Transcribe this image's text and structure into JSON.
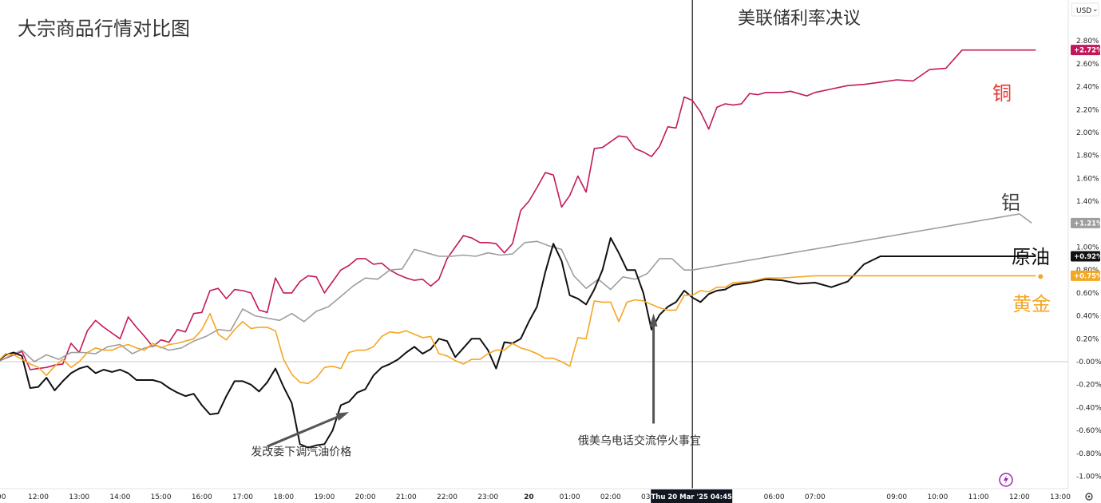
{
  "chart_data": {
    "type": "line",
    "title": "大宗商品行情对比图",
    "event_label": "美联储利率决议",
    "currency": "USD",
    "currency_caret": "⌄",
    "ylim": [
      -1.1,
      2.95
    ],
    "y_ticks": [
      "2.80%",
      "2.60%",
      "2.40%",
      "2.20%",
      "2.00%",
      "1.80%",
      "1.60%",
      "1.40%",
      "1.20%",
      "1.00%",
      "0.80%",
      "0.60%",
      "0.40%",
      "0.20%",
      "-0.00%",
      "-0.20%",
      "-0.40%",
      "-0.60%",
      "-0.80%",
      "-1.00%"
    ],
    "y_tick_values": [
      2.8,
      2.6,
      2.4,
      2.2,
      2.0,
      1.8,
      1.6,
      1.4,
      1.2,
      1.0,
      0.8,
      0.6,
      0.4,
      0.2,
      0,
      -0.2,
      -0.4,
      -0.6,
      -0.8,
      -1.0
    ],
    "x_ticks": [
      "00",
      "12:00",
      "13:00",
      "14:00",
      "15:00",
      "16:00",
      "17:00",
      "18:00",
      "19:00",
      "20:00",
      "21:00",
      "22:00",
      "23:00",
      "20",
      "01:00",
      "02:00",
      "03:00",
      "06:00",
      "07:00",
      "09:00",
      "10:00",
      "11:00",
      "12:00",
      "13:00"
    ],
    "x_tick_values": [
      11.0,
      12.0,
      13.0,
      14.0,
      15.0,
      16.0,
      17.0,
      18.0,
      19.0,
      20.0,
      21.0,
      22.0,
      23.0,
      24.0,
      25.0,
      26.0,
      27.0,
      30.0,
      31.0,
      33.0,
      34.0,
      35.0,
      36.0,
      37.0
    ],
    "xlim": [
      11.0,
      37.8
    ],
    "crosshair_x": 28.0,
    "crosshair_label": "Thu 20 Mar '25   04:45",
    "series": [
      {
        "name": "铜",
        "color": "#c2185b",
        "last_label": "+2.72%",
        "last_value": 2.72,
        "x": [
          11.0,
          11.2,
          11.4,
          11.6,
          11.8,
          12.0,
          12.2,
          12.4,
          12.6,
          12.8,
          13.0,
          13.2,
          13.4,
          13.6,
          13.8,
          14.0,
          14.2,
          14.4,
          14.6,
          14.8,
          15.0,
          15.2,
          15.4,
          15.6,
          15.8,
          16.0,
          16.2,
          16.4,
          16.6,
          16.8,
          17.0,
          17.2,
          17.4,
          17.6,
          17.8,
          18.0,
          18.2,
          18.4,
          18.6,
          18.8,
          19.0,
          19.2,
          19.4,
          19.6,
          19.8,
          20.0,
          20.2,
          20.4,
          20.6,
          20.8,
          21.0,
          21.2,
          21.4,
          21.6,
          21.8,
          22.0,
          22.2,
          22.4,
          22.6,
          22.8,
          23.0,
          23.2,
          23.4,
          23.6,
          23.8,
          24.0,
          24.2,
          24.4,
          24.6,
          24.8,
          25.0,
          25.2,
          25.4,
          25.6,
          25.8,
          26.0,
          26.2,
          26.4,
          26.6,
          26.8,
          27.0,
          27.2,
          27.4,
          27.6,
          27.8,
          28.0,
          28.2,
          28.4,
          28.6,
          28.8,
          29.0,
          29.2,
          29.4,
          29.6,
          29.8,
          30.0,
          30.2,
          30.4,
          30.6,
          30.8,
          31.0,
          31.4,
          31.8,
          32.2,
          32.6,
          33.0,
          33.4,
          33.8,
          34.2,
          34.6,
          35.0,
          35.4,
          35.8,
          36.0,
          36.2,
          36.4
        ],
        "y": [
          0.0,
          0.03,
          0.06,
          0.09,
          -0.07,
          -0.06,
          -0.05,
          -0.03,
          -0.02,
          0.16,
          0.08,
          0.27,
          0.36,
          0.3,
          0.25,
          0.2,
          0.39,
          0.3,
          0.22,
          0.13,
          0.19,
          0.17,
          0.28,
          0.26,
          0.42,
          0.43,
          0.62,
          0.64,
          0.55,
          0.63,
          0.62,
          0.6,
          0.45,
          0.43,
          0.73,
          0.6,
          0.6,
          0.7,
          0.75,
          0.74,
          0.6,
          0.7,
          0.8,
          0.84,
          0.9,
          0.9,
          0.85,
          0.86,
          0.8,
          0.76,
          0.73,
          0.71,
          0.72,
          0.66,
          0.72,
          0.9,
          1.0,
          1.1,
          1.08,
          1.04,
          1.04,
          1.03,
          0.95,
          1.03,
          1.32,
          1.4,
          1.52,
          1.65,
          1.63,
          1.35,
          1.45,
          1.62,
          1.48,
          1.86,
          1.87,
          1.92,
          1.97,
          1.96,
          1.86,
          1.83,
          1.79,
          1.88,
          2.05,
          2.04,
          2.31,
          2.28,
          2.18,
          2.03,
          2.22,
          2.25,
          2.24,
          2.25,
          2.34,
          2.33,
          2.35,
          2.35,
          2.35,
          2.36,
          2.34,
          2.32,
          2.35,
          2.38,
          2.41,
          2.42,
          2.44,
          2.46,
          2.45,
          2.55,
          2.56,
          2.72,
          2.72,
          2.72,
          2.72,
          2.72,
          2.72,
          2.72
        ]
      },
      {
        "name": "铝",
        "color": "#9e9e9e",
        "last_label": "+1.21%",
        "last_value": 1.21,
        "x": [
          11.0,
          11.3,
          11.6,
          11.9,
          12.2,
          12.5,
          12.8,
          13.1,
          13.4,
          13.7,
          14.0,
          14.3,
          14.6,
          14.9,
          15.2,
          15.5,
          15.8,
          16.1,
          16.4,
          16.7,
          17.0,
          17.3,
          17.6,
          17.9,
          18.2,
          18.5,
          18.8,
          19.1,
          19.4,
          19.7,
          20.0,
          20.3,
          20.6,
          20.9,
          21.2,
          21.5,
          21.8,
          22.1,
          22.4,
          22.7,
          23.0,
          23.3,
          23.6,
          23.9,
          24.2,
          24.5,
          24.8,
          25.1,
          25.4,
          25.7,
          26.0,
          26.3,
          26.6,
          26.9,
          27.2,
          27.5,
          27.8,
          28.0,
          36.0,
          36.3
        ],
        "y": [
          0.0,
          0.05,
          0.1,
          0.0,
          0.06,
          0.02,
          0.08,
          0.08,
          0.07,
          0.13,
          0.15,
          0.07,
          0.12,
          0.14,
          0.1,
          0.12,
          0.18,
          0.22,
          0.28,
          0.27,
          0.46,
          0.4,
          0.38,
          0.36,
          0.42,
          0.35,
          0.44,
          0.48,
          0.57,
          0.66,
          0.73,
          0.72,
          0.8,
          0.81,
          0.98,
          0.95,
          0.92,
          0.92,
          0.93,
          0.92,
          0.95,
          0.93,
          0.94,
          1.04,
          1.05,
          1.01,
          0.98,
          0.75,
          0.64,
          0.72,
          0.63,
          0.74,
          0.72,
          0.77,
          0.9,
          0.9,
          0.8,
          0.8,
          1.29,
          1.21
        ]
      },
      {
        "name": "原油",
        "color": "#111111",
        "last_label": "+0.92%",
        "last_value": 0.92,
        "x": [
          11.0,
          11.2,
          11.4,
          11.6,
          11.8,
          12.0,
          12.2,
          12.4,
          12.6,
          12.8,
          13.0,
          13.2,
          13.4,
          13.6,
          13.8,
          14.0,
          14.2,
          14.4,
          14.6,
          14.8,
          15.0,
          15.2,
          15.4,
          15.6,
          15.8,
          16.0,
          16.2,
          16.4,
          16.6,
          16.8,
          17.0,
          17.2,
          17.4,
          17.6,
          17.8,
          18.0,
          18.2,
          18.4,
          18.6,
          18.8,
          19.0,
          19.2,
          19.4,
          19.6,
          19.8,
          20.0,
          20.2,
          20.4,
          20.6,
          20.8,
          21.0,
          21.2,
          21.4,
          21.6,
          21.8,
          22.0,
          22.2,
          22.4,
          22.6,
          22.8,
          23.0,
          23.2,
          23.4,
          23.6,
          23.8,
          24.0,
          24.2,
          24.4,
          24.6,
          24.8,
          25.0,
          25.2,
          25.4,
          25.6,
          25.8,
          26.0,
          26.2,
          26.4,
          26.6,
          26.8,
          27.0,
          27.2,
          27.4,
          27.6,
          27.8,
          28.0,
          28.2,
          28.4,
          28.6,
          28.8,
          29.0,
          29.4,
          29.8,
          30.2,
          30.6,
          31.0,
          31.4,
          31.8,
          32.2,
          32.6,
          33.0,
          33.4,
          33.8,
          34.2,
          34.6,
          35.0,
          35.4,
          35.8,
          36.0,
          36.2,
          36.4
        ],
        "y": [
          0.0,
          0.06,
          0.08,
          0.05,
          -0.23,
          -0.22,
          -0.14,
          -0.25,
          -0.17,
          -0.1,
          -0.06,
          -0.04,
          -0.1,
          -0.07,
          -0.09,
          -0.07,
          -0.1,
          -0.16,
          -0.16,
          -0.16,
          -0.18,
          -0.23,
          -0.27,
          -0.3,
          -0.28,
          -0.38,
          -0.46,
          -0.45,
          -0.3,
          -0.17,
          -0.17,
          -0.2,
          -0.26,
          -0.18,
          -0.06,
          -0.22,
          -0.36,
          -0.72,
          -0.75,
          -0.73,
          -0.72,
          -0.6,
          -0.38,
          -0.35,
          -0.27,
          -0.24,
          -0.12,
          -0.05,
          -0.02,
          0.02,
          0.08,
          0.13,
          0.07,
          0.11,
          0.2,
          0.18,
          0.04,
          0.12,
          0.2,
          0.2,
          0.1,
          -0.06,
          0.17,
          0.16,
          0.2,
          0.35,
          0.48,
          0.78,
          1.03,
          0.88,
          0.58,
          0.55,
          0.5,
          0.63,
          0.8,
          1.08,
          0.95,
          0.8,
          0.8,
          0.6,
          0.28,
          0.41,
          0.48,
          0.52,
          0.62,
          0.56,
          0.52,
          0.59,
          0.62,
          0.63,
          0.67,
          0.69,
          0.72,
          0.71,
          0.68,
          0.69,
          0.65,
          0.7,
          0.85,
          0.92,
          0.92,
          0.92,
          0.92,
          0.92,
          0.92,
          0.92,
          0.92,
          0.92,
          0.92,
          0.92,
          0.92
        ],
        "y_fix_note_removed": true
      },
      {
        "name": "黄金",
        "color": "#f5a623",
        "last_label": "+0.75%",
        "last_value": 0.75,
        "x": [
          11.0,
          11.2,
          11.4,
          11.6,
          11.8,
          12.0,
          12.2,
          12.4,
          12.6,
          12.8,
          13.0,
          13.2,
          13.4,
          13.6,
          13.8,
          14.0,
          14.2,
          14.4,
          14.6,
          14.8,
          15.0,
          15.2,
          15.4,
          15.6,
          15.8,
          16.0,
          16.2,
          16.4,
          16.6,
          16.8,
          17.0,
          17.2,
          17.4,
          17.6,
          17.8,
          18.0,
          18.2,
          18.4,
          18.6,
          18.8,
          19.0,
          19.2,
          19.4,
          19.6,
          19.8,
          20.0,
          20.2,
          20.4,
          20.6,
          20.8,
          21.0,
          21.2,
          21.4,
          21.6,
          21.8,
          22.0,
          22.2,
          22.4,
          22.6,
          22.8,
          23.0,
          23.2,
          23.4,
          23.6,
          23.8,
          24.0,
          24.2,
          24.4,
          24.6,
          24.8,
          25.0,
          25.2,
          25.4,
          25.6,
          25.8,
          26.0,
          26.2,
          26.4,
          26.6,
          26.8,
          27.0,
          27.2,
          27.4,
          27.6,
          27.8,
          28.0,
          28.2,
          28.4,
          28.6,
          28.8,
          29.0,
          29.4,
          29.8,
          30.2,
          30.6,
          31.0,
          31.4,
          31.8,
          32.2,
          32.6,
          33.0,
          33.4,
          33.8,
          34.2,
          34.6,
          35.0,
          35.4,
          35.8,
          36.0,
          36.2,
          36.4
        ],
        "y": [
          0.0,
          0.07,
          0.06,
          0.02,
          -0.02,
          -0.05,
          -0.12,
          -0.04,
          0.02,
          -0.05,
          0.0,
          0.08,
          0.12,
          0.1,
          0.1,
          0.13,
          0.15,
          0.12,
          0.1,
          0.16,
          0.12,
          0.15,
          0.16,
          0.18,
          0.2,
          0.28,
          0.42,
          0.24,
          0.19,
          0.28,
          0.35,
          0.29,
          0.3,
          0.3,
          0.27,
          0.02,
          -0.11,
          -0.18,
          -0.19,
          -0.14,
          -0.05,
          -0.04,
          -0.06,
          0.08,
          0.1,
          0.1,
          0.13,
          0.22,
          0.26,
          0.25,
          0.27,
          0.24,
          0.21,
          0.22,
          0.07,
          0.05,
          0.01,
          -0.02,
          0.02,
          0.02,
          0.07,
          0.1,
          0.1,
          0.16,
          0.12,
          0.1,
          0.07,
          0.03,
          0.03,
          0.0,
          -0.04,
          0.21,
          0.2,
          0.53,
          0.52,
          0.52,
          0.35,
          0.52,
          0.54,
          0.53,
          0.5,
          0.47,
          0.45,
          0.45,
          0.58,
          0.58,
          0.62,
          0.61,
          0.65,
          0.65,
          0.69,
          0.7,
          0.73,
          0.73,
          0.74,
          0.75,
          0.75,
          0.75,
          0.75,
          0.75,
          0.75,
          0.75,
          0.75,
          0.75,
          0.75,
          0.75,
          0.75,
          0.75,
          0.75,
          0.75,
          0.75
        ]
      }
    ],
    "annotations": [
      {
        "text": "发改委下调汽油价格",
        "tx": 17.2,
        "ty": -0.82,
        "ax_from": 17.6,
        "ay_from": -0.74,
        "ax_to": 19.6,
        "ay_to": -0.44
      },
      {
        "text": "俄美乌电话交流停火事宜",
        "tx": 25.2,
        "ty": -0.72,
        "ax_from": 27.05,
        "ay_from": -0.54,
        "ax_to": 27.05,
        "ay_to": 0.42
      }
    ]
  }
}
